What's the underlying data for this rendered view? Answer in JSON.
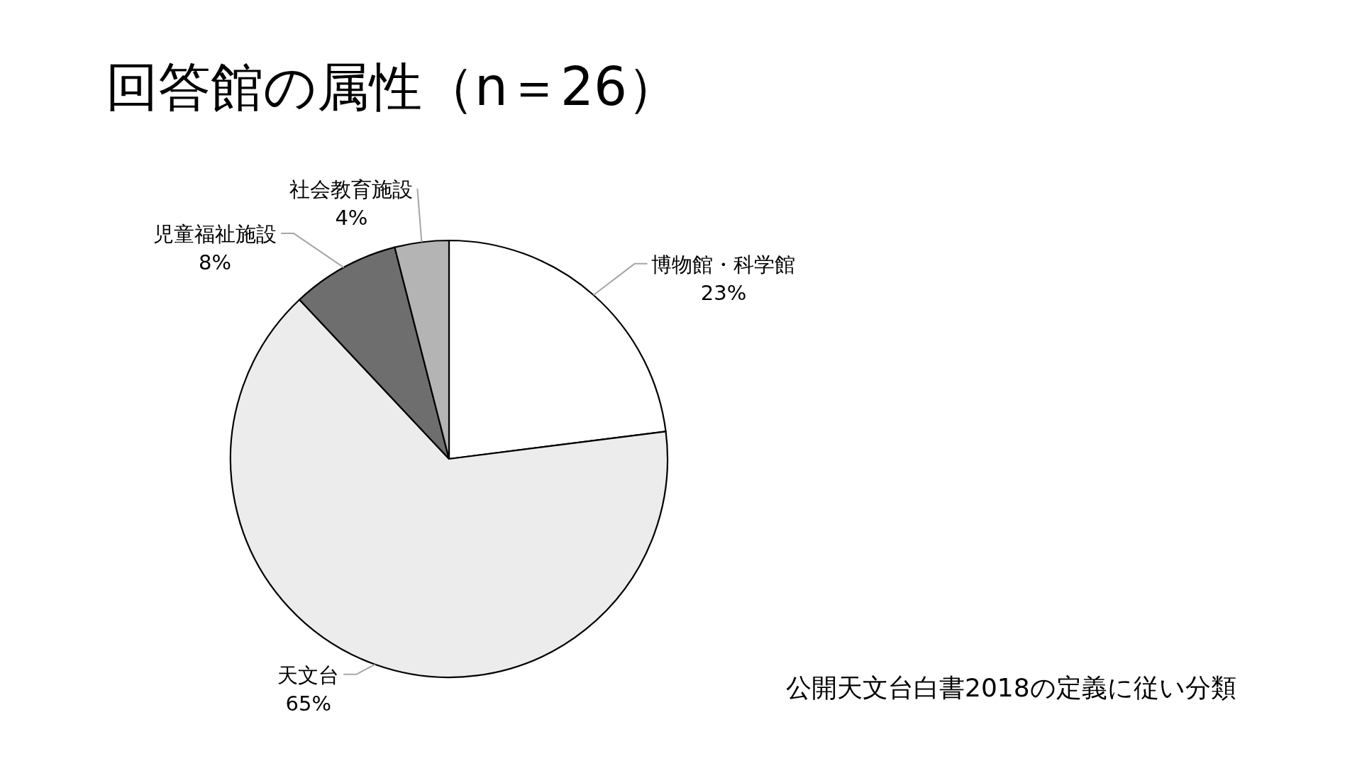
{
  "chart_data": {
    "type": "pie",
    "title": "回答館の属性（n＝26）",
    "categories": [
      "博物館・科学館",
      "天文台",
      "児童福祉施設",
      "社会教育施設"
    ],
    "values": [
      23,
      65,
      8,
      4
    ],
    "colors": [
      "#ffffff",
      "#ececec",
      "#6e6e6e",
      "#b4b4b4"
    ],
    "value_labels": [
      "23%",
      "65%",
      "8%",
      "4%"
    ],
    "annotations": [
      "公開天文台白書2018の定義に従い分類"
    ]
  }
}
